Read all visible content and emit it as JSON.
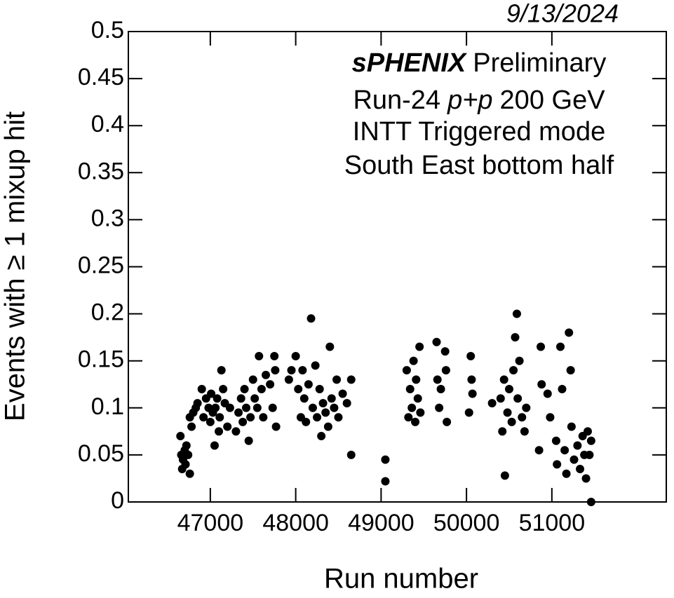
{
  "chart_data": {
    "type": "scatter",
    "date": "9/13/2024",
    "xlabel": "Run number",
    "ylabel": "Events with ≥ 1 mixup hit",
    "annotations": [
      [
        "sPHENIX",
        "Preliminary"
      ],
      [
        "Run-24",
        "p+p",
        "200 GeV"
      ],
      [
        "INTT Triggered mode"
      ],
      [
        "South East bottom half"
      ]
    ],
    "color": "#000000",
    "xlim": [
      46040,
      52340
    ],
    "xticks": [
      47000,
      48000,
      49000,
      50000,
      51000
    ],
    "ylim": [
      0,
      0.5
    ],
    "yticks": [
      0,
      0.05,
      0.1,
      0.15,
      0.2,
      0.25,
      0.3,
      0.35,
      0.4,
      0.45,
      0.5
    ],
    "x": [
      46650,
      46660,
      46670,
      46680,
      46700,
      46710,
      46720,
      46740,
      46760,
      46760,
      46780,
      46800,
      46830,
      46850,
      46900,
      46920,
      46950,
      46980,
      47000,
      47010,
      47030,
      47050,
      47060,
      47080,
      47100,
      47110,
      47130,
      47150,
      47170,
      47200,
      47230,
      47300,
      47330,
      47360,
      47380,
      47400,
      47420,
      47450,
      47470,
      47500,
      47520,
      47550,
      47570,
      47600,
      47620,
      47650,
      47700,
      47730,
      47750,
      47770,
      47760,
      47920,
      47950,
      48000,
      48030,
      48060,
      48080,
      48100,
      48120,
      48150,
      48180,
      48200,
      48230,
      48250,
      48280,
      48300,
      48320,
      48350,
      48380,
      48400,
      48420,
      48450,
      48480,
      48500,
      48550,
      48600,
      48650,
      48650,
      49050,
      49050,
      49300,
      49320,
      49340,
      49360,
      49380,
      49400,
      49410,
      49430,
      49450,
      49460,
      49650,
      49660,
      49680,
      49700,
      49750,
      49770,
      49760,
      50030,
      50050,
      50060,
      50070,
      50300,
      50400,
      50420,
      50440,
      50450,
      50480,
      50500,
      50530,
      50550,
      50570,
      50590,
      50600,
      50620,
      50650,
      50680,
      50700,
      50850,
      50870,
      50880,
      50950,
      50980,
      51050,
      51060,
      51100,
      51120,
      51150,
      51170,
      51200,
      51220,
      51230,
      51260,
      51300,
      51330,
      51360,
      51380,
      51400,
      51420,
      51440,
      51460,
      51460
    ],
    "values": [
      0.07,
      0.05,
      0.035,
      0.045,
      0.055,
      0.04,
      0.06,
      0.05,
      0.03,
      0.09,
      0.08,
      0.095,
      0.1,
      0.105,
      0.12,
      0.09,
      0.11,
      0.1,
      0.085,
      0.115,
      0.095,
      0.06,
      0.1,
      0.11,
      0.075,
      0.09,
      0.14,
      0.12,
      0.105,
      0.08,
      0.1,
      0.075,
      0.095,
      0.11,
      0.085,
      0.12,
      0.1,
      0.065,
      0.09,
      0.13,
      0.11,
      0.1,
      0.155,
      0.12,
      0.09,
      0.135,
      0.125,
      0.1,
      0.155,
      0.08,
      0.14,
      0.13,
      0.14,
      0.155,
      0.12,
      0.09,
      0.14,
      0.11,
      0.085,
      0.125,
      0.195,
      0.1,
      0.145,
      0.09,
      0.12,
      0.07,
      0.105,
      0.095,
      0.08,
      0.165,
      0.11,
      0.1,
      0.13,
      0.09,
      0.115,
      0.105,
      0.13,
      0.05,
      0.045,
      0.022,
      0.14,
      0.09,
      0.12,
      0.1,
      0.15,
      0.085,
      0.13,
      0.11,
      0.165,
      0.095,
      0.17,
      0.13,
      0.1,
      0.12,
      0.16,
      0.085,
      0.14,
      0.095,
      0.155,
      0.13,
      0.115,
      0.105,
      0.11,
      0.075,
      0.13,
      0.028,
      0.095,
      0.12,
      0.085,
      0.14,
      0.175,
      0.2,
      0.11,
      0.15,
      0.09,
      0.075,
      0.1,
      0.055,
      0.165,
      0.125,
      0.115,
      0.09,
      0.065,
      0.04,
      0.165,
      0.12,
      0.055,
      0.03,
      0.18,
      0.14,
      0.08,
      0.045,
      0.06,
      0.035,
      0.07,
      0.05,
      0.025,
      0.075,
      0.05,
      0.065,
      0.0
    ]
  }
}
